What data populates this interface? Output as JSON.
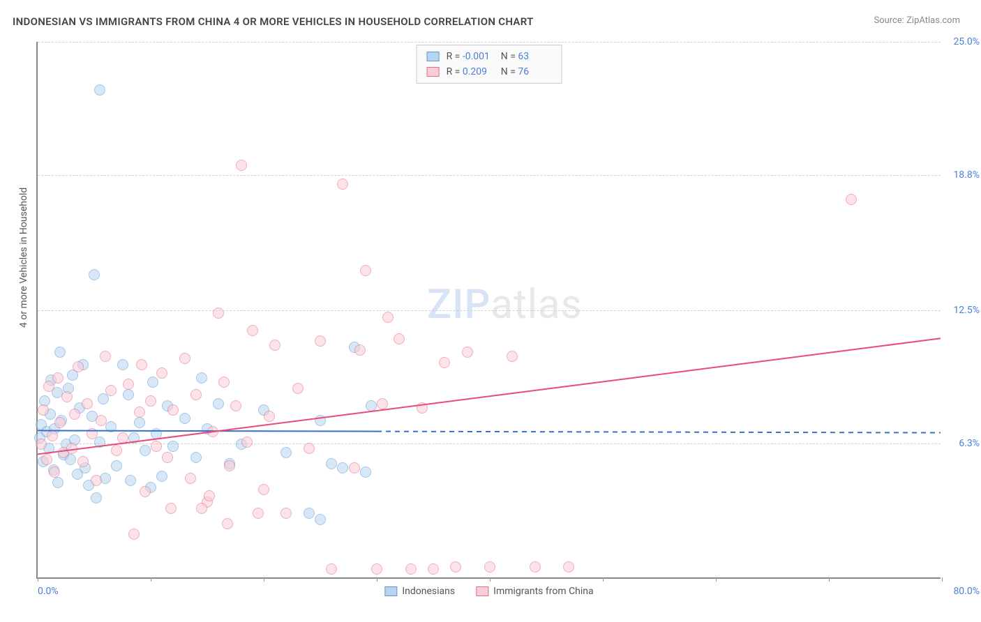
{
  "title": "INDONESIAN VS IMMIGRANTS FROM CHINA 4 OR MORE VEHICLES IN HOUSEHOLD CORRELATION CHART",
  "source": "Source: ZipAtlas.com",
  "ylabel": "4 or more Vehicles in Household",
  "watermark_prefix": "ZIP",
  "watermark_suffix": "atlas",
  "chart": {
    "type": "scatter",
    "xlim": [
      0,
      80
    ],
    "ylim": [
      0,
      25
    ],
    "x_min_label": "0.0%",
    "x_max_label": "80.0%",
    "x_tick_positions": [
      0,
      10,
      20,
      30,
      40,
      50,
      60,
      70,
      80
    ],
    "y_grid": [
      {
        "v": 6.3,
        "label": "6.3%"
      },
      {
        "v": 12.5,
        "label": "12.5%"
      },
      {
        "v": 18.8,
        "label": "18.8%"
      },
      {
        "v": 25.0,
        "label": "25.0%"
      }
    ],
    "background": "#ffffff",
    "grid_color": "#d0d0d0",
    "axis_color": "#888888",
    "label_color": "#4a7fd6",
    "marker_radius": 8,
    "marker_opacity": 0.55,
    "series": [
      {
        "name": "Indonesians",
        "fill": "#b8d4f0",
        "stroke": "#5a9bd5",
        "R": "-0.001",
        "N": "63",
        "trend": {
          "y0": 6.9,
          "y1": 6.8,
          "solid_until_x": 30,
          "color": "#3a6fc9",
          "width": 2
        },
        "points": [
          [
            0.2,
            6.5
          ],
          [
            0.3,
            7.1
          ],
          [
            0.5,
            5.4
          ],
          [
            0.6,
            8.2
          ],
          [
            0.8,
            6.8
          ],
          [
            1.0,
            6.0
          ],
          [
            1.1,
            7.6
          ],
          [
            1.2,
            9.2
          ],
          [
            1.4,
            5.0
          ],
          [
            1.5,
            6.9
          ],
          [
            1.7,
            8.6
          ],
          [
            1.8,
            4.4
          ],
          [
            2.0,
            10.5
          ],
          [
            2.1,
            7.3
          ],
          [
            2.3,
            5.7
          ],
          [
            2.5,
            6.2
          ],
          [
            2.7,
            8.8
          ],
          [
            2.9,
            5.5
          ],
          [
            3.1,
            9.4
          ],
          [
            3.3,
            6.4
          ],
          [
            3.5,
            4.8
          ],
          [
            3.7,
            7.9
          ],
          [
            4.0,
            9.9
          ],
          [
            4.2,
            5.1
          ],
          [
            4.5,
            4.3
          ],
          [
            4.8,
            7.5
          ],
          [
            5.0,
            14.1
          ],
          [
            5.2,
            3.7
          ],
          [
            5.5,
            6.3
          ],
          [
            5.8,
            8.3
          ],
          [
            6.0,
            4.6
          ],
          [
            5.5,
            22.7
          ],
          [
            6.5,
            7.0
          ],
          [
            7.0,
            5.2
          ],
          [
            7.5,
            9.9
          ],
          [
            8.0,
            8.5
          ],
          [
            8.2,
            4.5
          ],
          [
            8.5,
            6.5
          ],
          [
            9.0,
            7.2
          ],
          [
            9.5,
            5.9
          ],
          [
            10.0,
            4.2
          ],
          [
            10.2,
            9.1
          ],
          [
            10.5,
            6.7
          ],
          [
            11.0,
            4.7
          ],
          [
            11.5,
            8.0
          ],
          [
            12.0,
            6.1
          ],
          [
            13.0,
            7.4
          ],
          [
            14.0,
            5.6
          ],
          [
            14.5,
            9.3
          ],
          [
            15.0,
            6.9
          ],
          [
            16.0,
            8.1
          ],
          [
            17.0,
            5.3
          ],
          [
            24.0,
            3.0
          ],
          [
            25.0,
            2.7
          ],
          [
            26.0,
            5.3
          ],
          [
            27.0,
            5.1
          ],
          [
            28.0,
            10.7
          ],
          [
            29.0,
            4.9
          ],
          [
            29.5,
            8.0
          ],
          [
            25.0,
            7.3
          ],
          [
            18.0,
            6.2
          ],
          [
            20.0,
            7.8
          ],
          [
            22.0,
            5.8
          ]
        ]
      },
      {
        "name": "Immigrants from China",
        "fill": "#f8cdd6",
        "stroke": "#e86a8a",
        "R": "0.209",
        "N": "76",
        "trend": {
          "y0": 5.8,
          "y1": 11.2,
          "solid_until_x": 80,
          "color": "#e84a7a",
          "width": 2
        },
        "points": [
          [
            0.3,
            6.2
          ],
          [
            0.5,
            7.8
          ],
          [
            0.8,
            5.5
          ],
          [
            1.0,
            8.9
          ],
          [
            1.3,
            6.6
          ],
          [
            1.5,
            4.9
          ],
          [
            1.8,
            9.3
          ],
          [
            2.0,
            7.2
          ],
          [
            2.3,
            5.8
          ],
          [
            2.6,
            8.4
          ],
          [
            3.0,
            6.0
          ],
          [
            3.3,
            7.6
          ],
          [
            3.6,
            9.8
          ],
          [
            4.0,
            5.4
          ],
          [
            4.4,
            8.1
          ],
          [
            4.8,
            6.7
          ],
          [
            5.2,
            4.5
          ],
          [
            5.6,
            7.3
          ],
          [
            6.0,
            10.3
          ],
          [
            6.5,
            8.7
          ],
          [
            7.0,
            5.9
          ],
          [
            7.5,
            6.5
          ],
          [
            8.0,
            9.0
          ],
          [
            8.5,
            2.0
          ],
          [
            9.0,
            7.7
          ],
          [
            9.5,
            4.0
          ],
          [
            10.0,
            8.2
          ],
          [
            10.5,
            6.1
          ],
          [
            11.0,
            9.5
          ],
          [
            11.5,
            5.6
          ],
          [
            12.0,
            7.8
          ],
          [
            13.0,
            10.2
          ],
          [
            13.5,
            4.6
          ],
          [
            14.0,
            8.5
          ],
          [
            15.0,
            3.5
          ],
          [
            15.5,
            6.8
          ],
          [
            16.0,
            12.3
          ],
          [
            16.5,
            9.1
          ],
          [
            17.0,
            5.2
          ],
          [
            17.5,
            8.0
          ],
          [
            18.0,
            19.2
          ],
          [
            18.5,
            6.3
          ],
          [
            19.0,
            11.5
          ],
          [
            20.0,
            4.1
          ],
          [
            20.5,
            7.5
          ],
          [
            21.0,
            10.8
          ],
          [
            22.0,
            3.0
          ],
          [
            23.0,
            8.8
          ],
          [
            24.0,
            6.0
          ],
          [
            25.0,
            11.0
          ],
          [
            26.0,
            0.4
          ],
          [
            27.0,
            18.3
          ],
          [
            28.0,
            5.1
          ],
          [
            28.5,
            10.6
          ],
          [
            29.0,
            14.3
          ],
          [
            30.0,
            0.4
          ],
          [
            30.5,
            8.1
          ],
          [
            31.0,
            12.1
          ],
          [
            32.0,
            11.1
          ],
          [
            33.0,
            0.4
          ],
          [
            34.0,
            7.9
          ],
          [
            35.0,
            0.4
          ],
          [
            36.0,
            10.0
          ],
          [
            37.0,
            0.5
          ],
          [
            38.0,
            10.5
          ],
          [
            40.0,
            0.5
          ],
          [
            42.0,
            10.3
          ],
          [
            44.0,
            0.5
          ],
          [
            47.0,
            0.5
          ],
          [
            72.0,
            17.6
          ],
          [
            14.5,
            3.2
          ],
          [
            15.2,
            3.8
          ],
          [
            16.8,
            2.5
          ],
          [
            11.8,
            3.2
          ],
          [
            19.5,
            3.0
          ],
          [
            9.2,
            9.9
          ]
        ]
      }
    ],
    "stats_row_tpl": {
      "r_label": "R =",
      "n_label": "N ="
    },
    "bottom_legend": [
      {
        "label": "Indonesians",
        "fill": "#b8d4f0",
        "stroke": "#5a9bd5"
      },
      {
        "label": "Immigrants from China",
        "fill": "#f8cdd6",
        "stroke": "#e86a8a"
      }
    ]
  }
}
